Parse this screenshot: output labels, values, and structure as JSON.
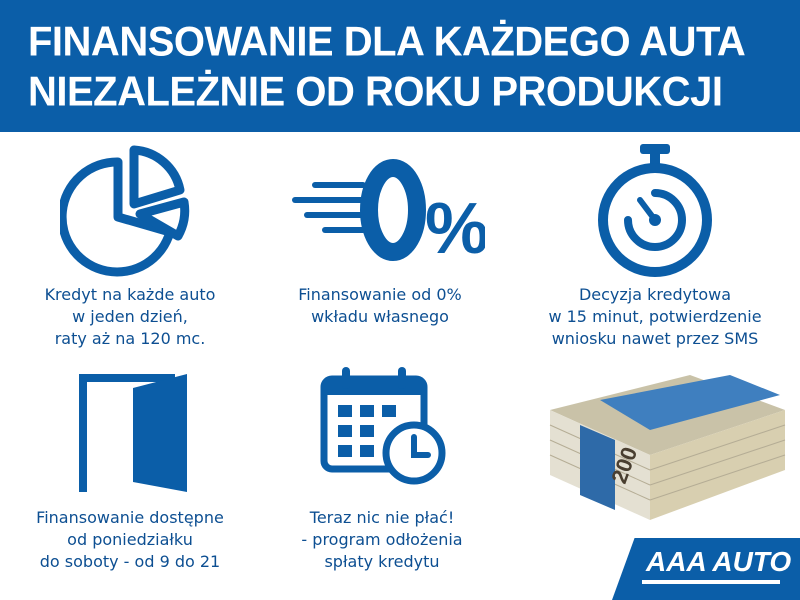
{
  "header": {
    "line1": "FINANSOWANIE DLA KAŻDEGO AUTA",
    "line2": "NIEZALEŻNIE OD ROKU PRODUKCJI"
  },
  "features": [
    {
      "icon": "pie-chart-icon",
      "lines": [
        "Kredyt na każde auto",
        "w jeden dzień,",
        "raty aż na 120 mc."
      ]
    },
    {
      "icon": "zero-percent-icon",
      "percent": "0%",
      "lines": [
        "Finansowanie od 0%",
        "wkładu własnego"
      ]
    },
    {
      "icon": "stopwatch-icon",
      "lines": [
        "Decyzja kredytowa",
        "w 15 minut, potwierdzenie",
        "wniosku nawet przez SMS"
      ]
    },
    {
      "icon": "door-icon",
      "lines": [
        "Finansowanie dostępne",
        "od poniedziałku",
        "do soboty - od 9 do 21"
      ]
    },
    {
      "icon": "calendar-clock-icon",
      "lines": [
        "Teraz nic nie płać!",
        "- program odłożenia",
        "spłaty kredytu"
      ]
    }
  ],
  "money_image": {
    "banknote_value": "200"
  },
  "logo": {
    "text": "AAA AUTO"
  },
  "colors": {
    "brand_blue": "#0b5ea8",
    "text_blue": "#0d4f92"
  }
}
